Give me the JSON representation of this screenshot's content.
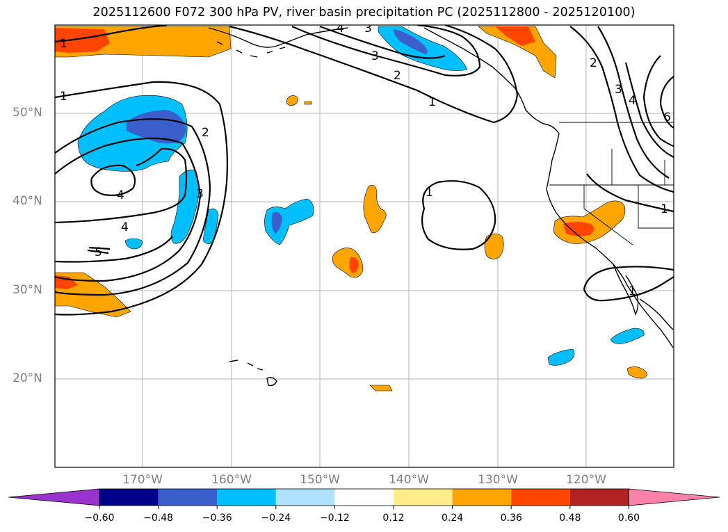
{
  "title": "2025112600 F072 300 hPa PV, river basin precipitation PC (2025112800 - 2025120100)",
  "lat_labels": [
    "50°N",
    "40°N",
    "30°N",
    "20°N"
  ],
  "lon_labels": [
    "170°W",
    "160°W",
    "150°W",
    "140°W",
    "130°W",
    "120°W"
  ],
  "colorbar": {
    "ticks": [
      "−0.60",
      "−0.48",
      "−0.36",
      "−0.24",
      "−0.12",
      "0.12",
      "0.24",
      "0.36",
      "0.48",
      "0.60"
    ],
    "colors": {
      "under": "#9a32cd",
      "b1": "#00008b",
      "b2": "#3a5fcd",
      "b3": "#00bfff",
      "b4": "#b0e2ff",
      "b5": "#ffffff",
      "b6": "#ffec8b",
      "b7": "#ffa500",
      "b8": "#ff4500",
      "b9": "#b22222",
      "over": "#ff82ab"
    }
  },
  "contour_labels": [
    "1",
    "1",
    "2",
    "3",
    "4",
    "4",
    "5",
    "1",
    "2",
    "3",
    "4",
    "3",
    "1",
    "2",
    "3",
    "4",
    "6",
    "1",
    "1"
  ]
}
